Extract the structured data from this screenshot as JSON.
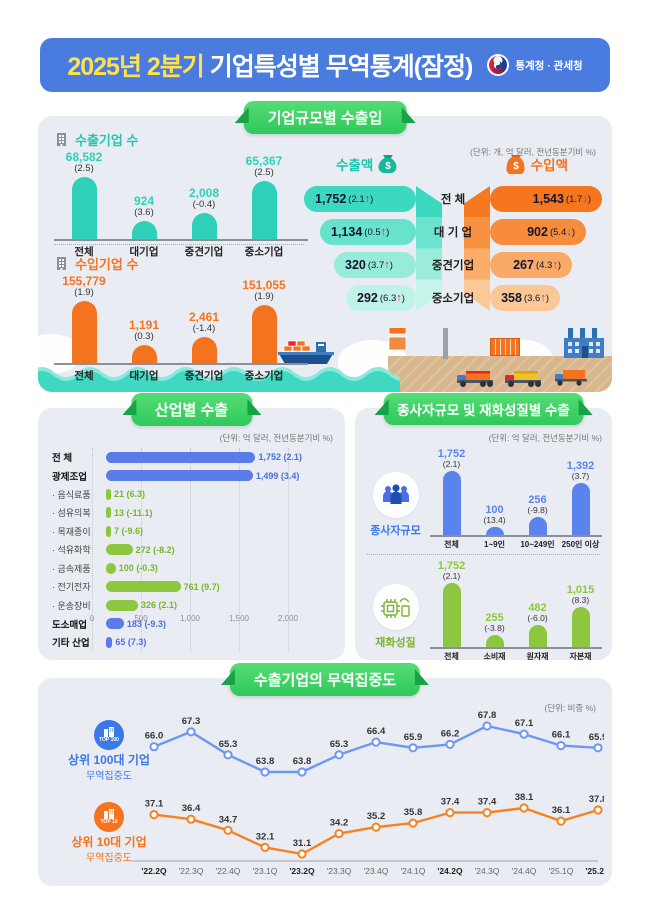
{
  "header": {
    "title_highlight": "2025년 2분기",
    "title_rest": " 기업특성별 무역통계(잠정)",
    "agency": "통계청 · 관세청"
  },
  "sections": {
    "size": {
      "title": "기업규모별 수출입",
      "unit": "(단위: 개, 억 달러, 전년동분기비 %)"
    },
    "industry": {
      "title": "산업별 수출",
      "unit": "(단위: 억 달러, 전년동분기비 %)"
    },
    "worker_goods": {
      "title": "종사자규모 및 재화성질별 수출",
      "unit": "(단위: 억 달러, 전년동분기비 %)"
    },
    "concentration": {
      "title": "수출기업의 무역집중도",
      "unit": "(단위: 비중 %)"
    }
  },
  "chart_data": [
    {
      "id": "export_companies",
      "type": "bar",
      "title": "수출기업 수",
      "categories": [
        "전체",
        "대기업",
        "중견기업",
        "중소기업"
      ],
      "values": [
        68582,
        924,
        2008,
        65367
      ],
      "values_display": [
        "68,582",
        "924",
        "2,008",
        "65,367"
      ],
      "changes_display": [
        "(2.5)",
        "(3.6)",
        "(-0.4)",
        "(2.5)"
      ],
      "color": "#2fd0b9",
      "display_heights": [
        62,
        18,
        26,
        58
      ]
    },
    {
      "id": "import_companies",
      "type": "bar",
      "title": "수입기업 수",
      "categories": [
        "전체",
        "대기업",
        "중견기업",
        "중소기업"
      ],
      "values": [
        155779,
        1191,
        2461,
        151055
      ],
      "values_display": [
        "155,779",
        "1,191",
        "2,461",
        "151,055"
      ],
      "changes_display": [
        "(1.9)",
        "(0.3)",
        "(-1.4)",
        "(1.9)"
      ],
      "color": "#f4731f",
      "display_heights": [
        62,
        18,
        26,
        58
      ]
    },
    {
      "id": "trade_amounts",
      "type": "table",
      "export_label": "수출액",
      "import_label": "수입액",
      "categories": [
        "전 체",
        "대 기 업",
        "중견기업",
        "중소기업"
      ],
      "export": {
        "values_display": [
          "1,752",
          "1,134",
          "320",
          "292"
        ],
        "changes": [
          "2.1",
          "0.5",
          "3.7",
          "6.3"
        ],
        "dirs": [
          "up",
          "up",
          "up",
          "up"
        ]
      },
      "import": {
        "values_display": [
          "1,543",
          "902",
          "267",
          "358"
        ],
        "changes": [
          "1.7",
          "5.4",
          "4.3",
          "3.6"
        ],
        "dirs": [
          "down",
          "down",
          "up",
          "up"
        ]
      },
      "export_row_colors": [
        "#3cd9c0",
        "#66e2cd",
        "#97ebd9",
        "#c0f3e7"
      ],
      "import_row_colors": [
        "#f5761f",
        "#f78d3c",
        "#f9aa67",
        "#fbc794"
      ]
    },
    {
      "id": "industry_exports",
      "type": "bar",
      "orientation": "horizontal",
      "xlim": [
        0,
        2000
      ],
      "x_ticks": [
        "0",
        "500",
        "1,000",
        "1,500",
        "2,000"
      ],
      "rows": [
        {
          "label": "전    체",
          "value": 1752,
          "display": "1,752 (2.1)",
          "group": "main"
        },
        {
          "label": "광제조업",
          "value": 1499,
          "display": "1,499 (3.4)",
          "group": "main"
        },
        {
          "label": "음식료품",
          "value": 21,
          "display": "21 (6.3)",
          "group": "sub"
        },
        {
          "label": "섬유의복",
          "value": 13,
          "display": "13 (-11.1)",
          "group": "sub"
        },
        {
          "label": "목재종이",
          "value": 7,
          "display": "7 (-9.6)",
          "group": "sub"
        },
        {
          "label": "석유화학",
          "value": 272,
          "display": "272 (-8.2)",
          "group": "sub"
        },
        {
          "label": "금속제품",
          "value": 100,
          "display": "100 (-0.3)",
          "group": "sub"
        },
        {
          "label": "전기전자",
          "value": 761,
          "display": "761 (9.7)",
          "group": "sub"
        },
        {
          "label": "운송장비",
          "value": 326,
          "display": "326 (2.1)",
          "group": "sub"
        },
        {
          "label": "도소매업",
          "value": 183,
          "display": "183 (-9.3)",
          "group": "main"
        },
        {
          "label": "기타 산업",
          "value": 65,
          "display": "65 (7.3)",
          "group": "main"
        }
      ],
      "color_main": "#5a7ce8",
      "color_sub": "#8dc63f"
    },
    {
      "id": "worker_size_exports",
      "type": "bar",
      "title": "종사자규모",
      "categories": [
        "전체",
        "1~9인",
        "10~249인",
        "250인 이상"
      ],
      "values": [
        1752,
        100,
        256,
        1392
      ],
      "values_display": [
        "1,752",
        "100",
        "256",
        "1,392"
      ],
      "changes_display": [
        "(2.1)",
        "(13.4)",
        "(-9.8)",
        "(3.7)"
      ],
      "color": "#5b83ee",
      "display_heights": [
        64,
        8,
        18,
        52
      ]
    },
    {
      "id": "goods_nature_exports",
      "type": "bar",
      "title": "재화성질",
      "categories": [
        "전체",
        "소비재",
        "원자재",
        "자본재"
      ],
      "values": [
        1752,
        255,
        482,
        1015
      ],
      "values_display": [
        "1,752",
        "255",
        "482",
        "1,015"
      ],
      "changes_display": [
        "(2.1)",
        "(-3.8)",
        "(-6.0)",
        "(8.3)"
      ],
      "color": "#8dc63f",
      "display_heights": [
        64,
        12,
        22,
        40
      ]
    },
    {
      "id": "trade_concentration",
      "type": "line",
      "x": [
        "'22.2Q",
        "'22.3Q",
        "'22.4Q",
        "'23.1Q",
        "'23.2Q",
        "'23.3Q",
        "'23.4Q",
        "'24.1Q",
        "'24.2Q",
        "'24.3Q",
        "'24.4Q",
        "'25.1Q",
        "'25.2Q"
      ],
      "bold_x_indices": [
        0,
        4,
        8,
        12
      ],
      "series": [
        {
          "name": "상위 100대 기업",
          "sub": "무역집중도",
          "badge": "TOP 100",
          "color": "#6f97f2",
          "values": [
            66.0,
            67.3,
            65.3,
            63.8,
            63.8,
            65.3,
            66.4,
            65.9,
            66.2,
            67.8,
            67.1,
            66.1,
            65.9
          ]
        },
        {
          "name": "상위 10대 기업",
          "sub": "무역집중도",
          "badge": "TOP 10",
          "color": "#f58220",
          "values": [
            37.1,
            36.4,
            34.7,
            32.1,
            31.1,
            34.2,
            35.2,
            35.8,
            37.4,
            37.4,
            38.1,
            36.1,
            37.8
          ]
        }
      ]
    }
  ]
}
